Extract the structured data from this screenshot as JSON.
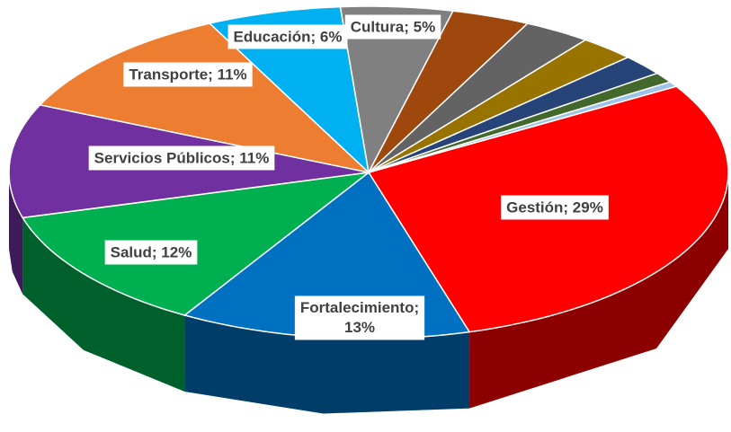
{
  "chart_data": {
    "type": "pie3d",
    "values": [
      29,
      13,
      12,
      11,
      11,
      6,
      5,
      3.5,
      3,
      2.5,
      2,
      1,
      0.5
    ],
    "value_labels": [
      "Gestión; 29%",
      "Fortalecimiento; 13%",
      "Salud; 12%",
      "Servicios Públicos; 11%",
      "Transporte; 11%",
      "Educación; 6%",
      "Cultura; 5%",
      null,
      null,
      null,
      null,
      null,
      null
    ],
    "colors": [
      "#ff0000",
      "#0070c0",
      "#00b050",
      "#7030a0",
      "#ed7d31",
      "#00b0f0",
      "#808080",
      "#9e480e",
      "#636363",
      "#997300",
      "#264478",
      "#43682b",
      "#9dc3e6"
    ]
  }
}
